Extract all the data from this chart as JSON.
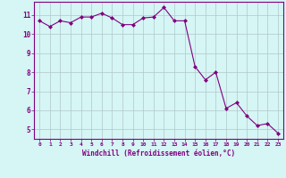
{
  "x": [
    0,
    1,
    2,
    3,
    4,
    5,
    6,
    7,
    8,
    9,
    10,
    11,
    12,
    13,
    14,
    15,
    16,
    17,
    18,
    19,
    20,
    21,
    22,
    23
  ],
  "y": [
    10.7,
    10.4,
    10.7,
    10.6,
    10.9,
    10.9,
    11.1,
    10.85,
    10.5,
    10.5,
    10.85,
    10.9,
    11.4,
    10.7,
    10.7,
    8.3,
    7.6,
    8.0,
    6.1,
    6.4,
    5.7,
    5.2,
    5.3,
    4.8
  ],
  "line_color": "#800080",
  "marker": "D",
  "marker_size": 2.0,
  "bg_color": "#d6f5f5",
  "grid_color": "#b0c8c8",
  "xlabel": "Windchill (Refroidissement éolien,°C)",
  "xlabel_color": "#800080",
  "tick_color": "#800080",
  "spine_color": "#800080",
  "xlim": [
    -0.5,
    23.5
  ],
  "ylim": [
    4.5,
    11.7
  ],
  "yticks": [
    5,
    6,
    7,
    8,
    9,
    10,
    11
  ],
  "xticks": [
    0,
    1,
    2,
    3,
    4,
    5,
    6,
    7,
    8,
    9,
    10,
    11,
    12,
    13,
    14,
    15,
    16,
    17,
    18,
    19,
    20,
    21,
    22,
    23
  ]
}
